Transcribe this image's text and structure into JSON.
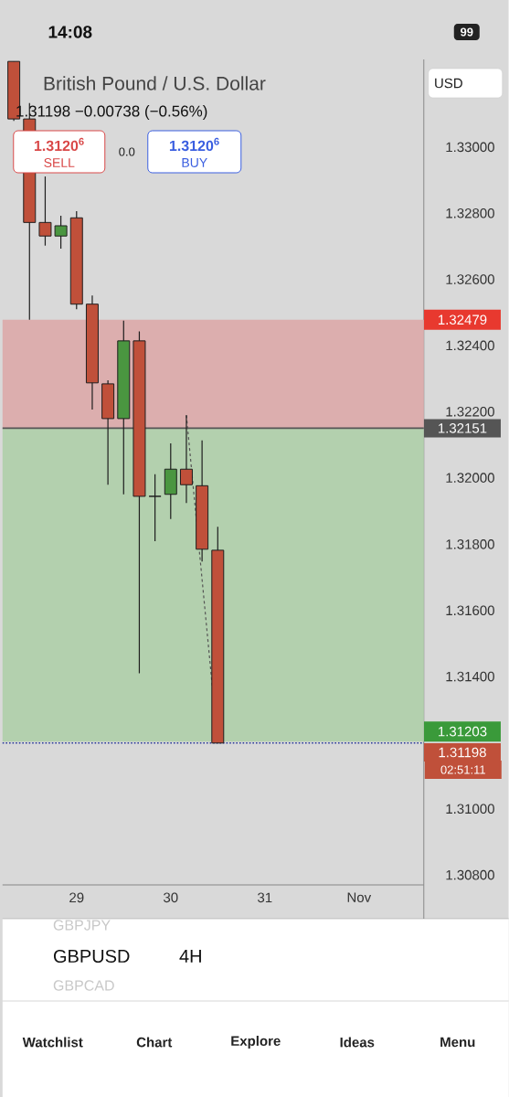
{
  "chart_data": {
    "type": "candlestick",
    "title": "British Pound / U.S. Dollar",
    "subtitle": "1.31198 −0.00738 (−0.56%)",
    "x": [
      28.3333,
      28.5,
      28.6667,
      28.8333,
      29.0,
      29.1667,
      29.3333,
      29.5,
      29.6667,
      29.8333,
      30.0,
      30.1667,
      30.3333,
      30.5
    ],
    "ohlc": [
      [
        1.3326,
        1.3326,
        1.3308,
        1.33086
      ],
      [
        1.33086,
        1.33133,
        1.32478,
        1.32773
      ],
      [
        1.32773,
        1.32912,
        1.32702,
        1.32732
      ],
      [
        1.32732,
        1.32793,
        1.32693,
        1.32762
      ],
      [
        1.32787,
        1.32807,
        1.32511,
        1.32525
      ],
      [
        1.32525,
        1.32552,
        1.32207,
        1.32287
      ],
      [
        1.32284,
        1.32295,
        1.3198,
        1.32179
      ],
      [
        1.32179,
        1.32475,
        1.3195,
        1.32414
      ],
      [
        1.32414,
        1.32444,
        1.31408,
        1.31944
      ],
      [
        1.31944,
        1.32011,
        1.31809,
        1.31944
      ],
      [
        1.3195,
        1.32105,
        1.31875,
        1.32027
      ],
      [
        1.32027,
        1.3219,
        1.31925,
        1.3198
      ],
      [
        1.31977,
        1.32113,
        1.31748,
        1.31784
      ],
      [
        1.31781,
        1.31853,
        1.31198,
        1.31198
      ]
    ],
    "colors": [
      "#c0503a",
      "#c0503a",
      "#c0503a",
      "#4a9640",
      "#c0503a",
      "#c0503a",
      "#c0503a",
      "#4a9640",
      "#c0503a",
      "#1e1e1e",
      "#4a9640",
      "#c0503a",
      "#c0503a",
      "#c0503a"
    ],
    "series": [
      {
        "type": "line",
        "x": [
          30.1667,
          30.5
        ],
        "values": [
          1.3219,
          1.31198
        ],
        "color": "#555555",
        "line_style": "dashed"
      }
    ],
    "xlim": [
      28.2136,
      32.689
    ],
    "xticks": [
      29,
      30,
      31,
      {
        "value": 32,
        "label": "Nov"
      }
    ],
    "ylim": [
      1.3077,
      1.33265
    ],
    "yticks": [
      {
        "value": 1.308,
        "label": "1.30800"
      },
      {
        "value": 1.31,
        "label": "1.31000"
      },
      {
        "value": 1.314,
        "label": "1.31400"
      },
      {
        "value": 1.316,
        "label": "1.31600"
      },
      {
        "value": 1.318,
        "label": "1.31800"
      },
      {
        "value": 1.32,
        "label": "1.32000"
      },
      {
        "value": 1.322,
        "label": "1.32200"
      },
      {
        "value": 1.324,
        "label": "1.32400"
      },
      {
        "value": 1.326,
        "label": "1.32600"
      },
      {
        "value": 1.328,
        "label": "1.32800"
      },
      {
        "value": 1.33,
        "label": "1.33000"
      }
    ],
    "bands": [
      {
        "axis": "y",
        "from": 1.32151,
        "to": 1.32479,
        "label": "1.32479",
        "color": "#dcaeae"
      },
      {
        "axis": "y",
        "from": 1.31203,
        "to": 1.32151,
        "label": "1.31203",
        "color": "#b3d0ae"
      }
    ],
    "ref_lines": [
      {
        "axis": "y",
        "value": 1.32151,
        "label": "1.32151",
        "color": "#555555",
        "line_style": "solid"
      },
      {
        "axis": "y",
        "value": 1.31198,
        "label": "1.31198",
        "color": "#2a3a9a",
        "line_style": "dotted"
      }
    ],
    "annotations": [
      "1.3120$^{6}$",
      "SELL",
      "0.0",
      "1.3120$^{6}$",
      "BUY",
      "USD",
      "02:51:11",
      "14:08",
      "99",
      "GBPJPY",
      "GBPUSD",
      "4H",
      "GBPCAD",
      "Watchlist",
      "Chart",
      "Explore",
      "Ideas",
      "Menu"
    ]
  }
}
